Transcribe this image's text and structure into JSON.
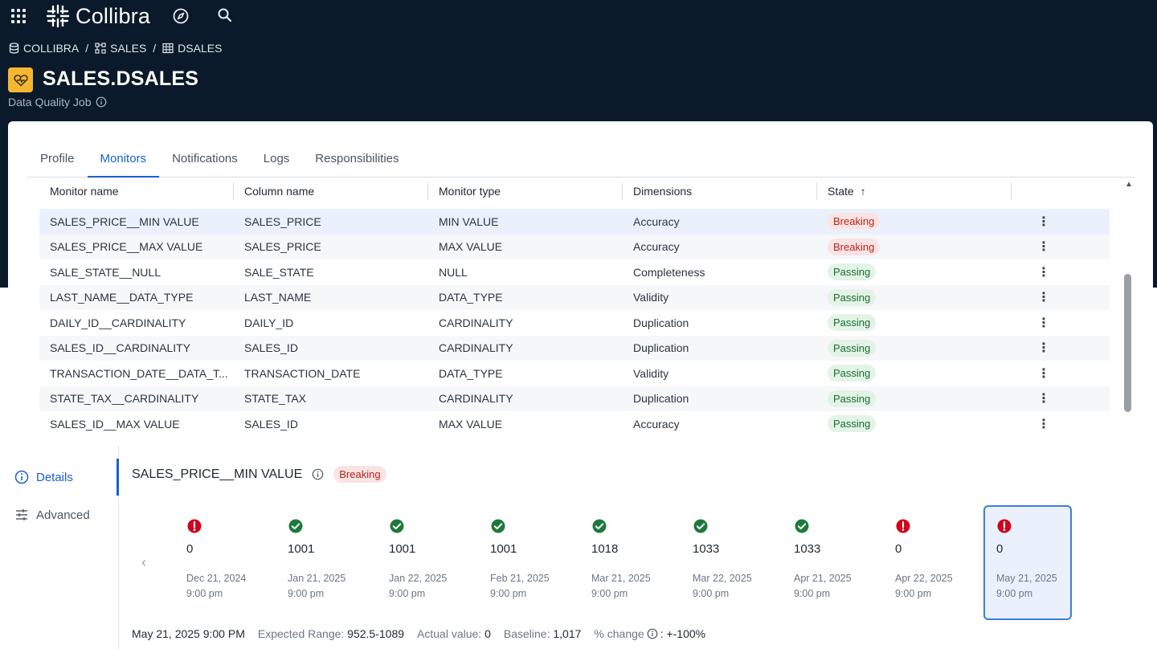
{
  "app": {
    "brand": "Collibra"
  },
  "breadcrumb": [
    {
      "label": "COLLIBRA",
      "icon": "database-icon"
    },
    {
      "label": "SALES",
      "icon": "schema-icon"
    },
    {
      "label": "DSALES",
      "icon": "table-icon"
    }
  ],
  "breadcrumb_sep": "/",
  "asset": {
    "title": "SALES.DSALES",
    "type": "Data Quality Job",
    "icon_color": "#f5b731"
  },
  "tabs": [
    "Profile",
    "Monitors",
    "Notifications",
    "Logs",
    "Responsibilities"
  ],
  "active_tab": "Monitors",
  "table": {
    "headers": [
      "Monitor name",
      "Column name",
      "Monitor type",
      "Dimensions",
      "State"
    ],
    "sort_indicator": "↑",
    "rows": [
      {
        "name": "SALES_PRICE__MIN VALUE",
        "column": "SALES_PRICE",
        "type": "MIN VALUE",
        "dimension": "Accuracy",
        "state": "Breaking"
      },
      {
        "name": "SALES_PRICE__MAX VALUE",
        "column": "SALES_PRICE",
        "type": "MAX VALUE",
        "dimension": "Accuracy",
        "state": "Breaking"
      },
      {
        "name": "SALE_STATE__NULL",
        "column": "SALE_STATE",
        "type": "NULL",
        "dimension": "Completeness",
        "state": "Passing"
      },
      {
        "name": "LAST_NAME__DATA_TYPE",
        "column": "LAST_NAME",
        "type": "DATA_TYPE",
        "dimension": "Validity",
        "state": "Passing"
      },
      {
        "name": "DAILY_ID__CARDINALITY",
        "column": "DAILY_ID",
        "type": "CARDINALITY",
        "dimension": "Duplication",
        "state": "Passing"
      },
      {
        "name": "SALES_ID__CARDINALITY",
        "column": "SALES_ID",
        "type": "CARDINALITY",
        "dimension": "Duplication",
        "state": "Passing"
      },
      {
        "name": "TRANSACTION_DATE__DATA_T...",
        "column": "TRANSACTION_DATE",
        "type": "DATA_TYPE",
        "dimension": "Validity",
        "state": "Passing"
      },
      {
        "name": "STATE_TAX__CARDINALITY",
        "column": "STATE_TAX",
        "type": "CARDINALITY",
        "dimension": "Duplication",
        "state": "Passing"
      },
      {
        "name": "SALES_ID__MAX VALUE",
        "column": "SALES_ID",
        "type": "MAX VALUE",
        "dimension": "Accuracy",
        "state": "Passing"
      }
    ]
  },
  "side_nav": {
    "details": "Details",
    "advanced": "Advanced"
  },
  "detail": {
    "title": "SALES_PRICE__MIN VALUE",
    "state": "Breaking"
  },
  "runs": [
    {
      "value": "0",
      "date": "Dec 21, 2024",
      "time": "9:00 pm",
      "status": "breaking"
    },
    {
      "value": "1001",
      "date": "Jan 21, 2025",
      "time": "9:00 pm",
      "status": "passing"
    },
    {
      "value": "1001",
      "date": "Jan 22, 2025",
      "time": "9:00 pm",
      "status": "passing"
    },
    {
      "value": "1001",
      "date": "Feb 21, 2025",
      "time": "9:00 pm",
      "status": "passing"
    },
    {
      "value": "1018",
      "date": "Mar 21, 2025",
      "time": "9:00 pm",
      "status": "passing"
    },
    {
      "value": "1033",
      "date": "Mar 22, 2025",
      "time": "9:00 pm",
      "status": "passing"
    },
    {
      "value": "1033",
      "date": "Apr 21, 2025",
      "time": "9:00 pm",
      "status": "passing"
    },
    {
      "value": "0",
      "date": "Apr 22, 2025",
      "time": "9:00 pm",
      "status": "breaking"
    },
    {
      "value": "0",
      "date": "May 21, 2025",
      "time": "9:00 pm",
      "status": "breaking",
      "selected": true
    }
  ],
  "summary": {
    "timestamp": "May 21, 2025 9:00 PM",
    "expected_label": "Expected Range:",
    "expected_value": "952.5-1089",
    "actual_label": "Actual value:",
    "actual_value": "0",
    "baseline_label": "Baseline:",
    "baseline_value": "1,017",
    "change_label": "% change",
    "change_value": ": +-100%"
  },
  "colors": {
    "header_bg": "#0a1a2a",
    "accent": "#1a5fd0",
    "breaking": "#d0021b",
    "passing": "#1e7a3c"
  }
}
